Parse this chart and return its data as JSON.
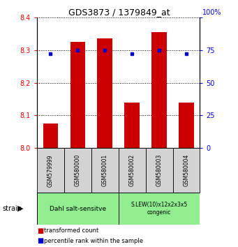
{
  "title": "GDS3873 / 1379849_at",
  "samples": [
    "GSM579999",
    "GSM580000",
    "GSM580001",
    "GSM580002",
    "GSM580003",
    "GSM580004"
  ],
  "red_values": [
    8.075,
    8.325,
    8.335,
    8.14,
    8.355,
    8.14
  ],
  "blue_values": [
    72,
    75,
    75,
    72,
    75,
    72
  ],
  "ylim_left": [
    8.0,
    8.4
  ],
  "ylim_right": [
    0,
    100
  ],
  "yticks_left": [
    8.0,
    8.1,
    8.2,
    8.3,
    8.4
  ],
  "yticks_right": [
    0,
    25,
    50,
    75,
    100
  ],
  "group1_label": "Dahl salt-sensitve",
  "group2_label": "S.LEW(10)x12x2x3x5\ncongenic",
  "group1_indices": [
    0,
    1,
    2
  ],
  "group2_indices": [
    3,
    4,
    5
  ],
  "bar_color": "#cc0000",
  "dot_color": "#0000cc",
  "group_bg": "#90ee90",
  "sample_bg": "#d3d3d3",
  "legend_red": "transformed count",
  "legend_blue": "percentile rank within the sample",
  "strain_label": "strain",
  "bar_bottom": 8.0,
  "bar_width": 0.55
}
